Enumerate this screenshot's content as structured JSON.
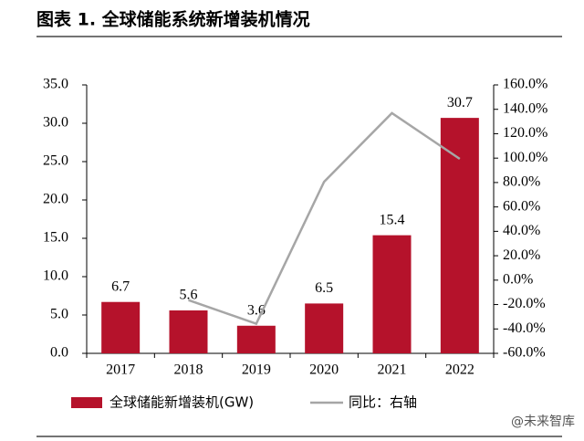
{
  "chart_data": {
    "type": "bar-line",
    "title": "图表 1. 全球储能系统新增装机情况",
    "categories": [
      "2017",
      "2018",
      "2019",
      "2020",
      "2021",
      "2022"
    ],
    "series": [
      {
        "name": "全球储能新增装机(GW)",
        "color": "#b5122b",
        "type": "bar",
        "values": [
          6.7,
          5.6,
          3.6,
          6.5,
          15.4,
          30.7
        ]
      },
      {
        "name": "同比：右轴",
        "color": "#a6a6a6",
        "type": "line",
        "axis": "y2",
        "values": [
          null,
          -16.4,
          -35.7,
          80.6,
          136.9,
          99.4
        ]
      }
    ],
    "ylim": [
      0,
      35
    ],
    "yticks": [
      {
        "value": 0,
        "label": "0.0"
      },
      {
        "value": 5,
        "label": "5.0"
      },
      {
        "value": 10,
        "label": "10.0"
      },
      {
        "value": 15,
        "label": "15.0"
      },
      {
        "value": 20,
        "label": "20.0"
      },
      {
        "value": 25,
        "label": "25.0"
      },
      {
        "value": 30,
        "label": "30.0"
      },
      {
        "value": 35,
        "label": "35.0"
      }
    ],
    "y2lim": [
      -60,
      160
    ],
    "y2ticks": [
      {
        "value": -60,
        "label": "-60.0%"
      },
      {
        "value": -40,
        "label": "-40.0%"
      },
      {
        "value": -20,
        "label": "-20.0%"
      },
      {
        "value": 0,
        "label": "0.0%"
      },
      {
        "value": 20,
        "label": "20.0%"
      },
      {
        "value": 40,
        "label": "40.0%"
      },
      {
        "value": 60,
        "label": "60.0%"
      },
      {
        "value": 80,
        "label": "80.0%"
      },
      {
        "value": 100,
        "label": "100.0%"
      },
      {
        "value": 120,
        "label": "120.0%"
      },
      {
        "value": 140,
        "label": "140.0%"
      },
      {
        "value": 160,
        "label": "160.0%"
      }
    ],
    "watermark": "@未来智库"
  }
}
